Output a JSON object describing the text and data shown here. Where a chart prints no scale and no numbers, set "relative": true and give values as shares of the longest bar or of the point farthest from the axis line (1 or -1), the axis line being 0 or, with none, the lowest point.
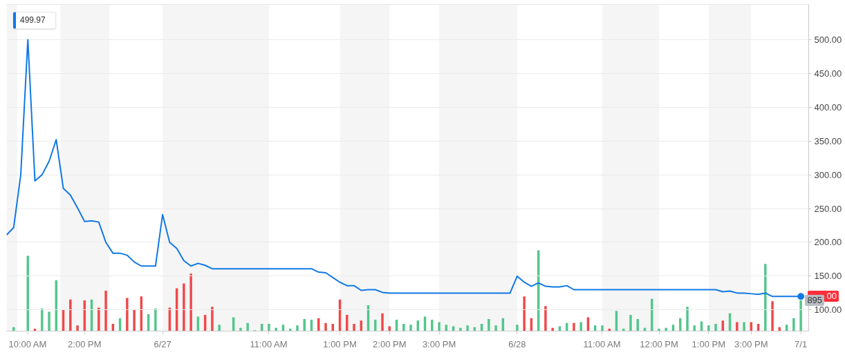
{
  "chart_data": [
    {
      "type": "bar",
      "relative": true,
      "tick_labels": false,
      "categories": [
        null,
        null,
        null,
        "10:00 AM",
        null,
        null,
        null,
        null,
        null,
        null,
        null,
        "2:00 PM",
        null,
        null,
        null,
        null,
        null,
        null,
        null,
        null,
        null,
        null,
        "6/27",
        null,
        null,
        null,
        null,
        null,
        null,
        null,
        null,
        null,
        null,
        null,
        null,
        null,
        null,
        "11:00 AM",
        null,
        null,
        null,
        null,
        null,
        null,
        null,
        null,
        null,
        "1:00 PM",
        null,
        null,
        null,
        null,
        null,
        null,
        "2:00 PM",
        null,
        null,
        null,
        null,
        null,
        null,
        "3:00 PM",
        null,
        null,
        null,
        null,
        null,
        null,
        null,
        null,
        null,
        null,
        "6/28",
        null,
        null,
        null,
        null,
        null,
        null,
        null,
        null,
        null,
        null,
        null,
        "11:00 AM",
        null,
        null,
        null,
        null,
        null,
        null,
        null,
        "12:00 PM",
        null,
        null,
        null,
        null,
        null,
        null,
        "1:00 PM",
        null,
        null,
        null,
        null,
        null,
        "3:00 PM",
        null,
        null,
        null,
        null,
        null,
        null,
        "7/1"
      ],
      "annotations": [
        {
          "text": "895",
          "x": "7/1",
          "y": 0.38
        }
      ],
      "bands": [
        {
          "axis": "x",
          "from": "6/27",
          "to": "11:00 AM",
          "color": "#f5f5f5"
        },
        {
          "axis": "x",
          "from": "3:00 PM",
          "to": "6/28",
          "color": "#f5f5f5"
        }
      ],
      "series": [
        {
          "values": [
            null,
            0.05,
            null,
            0.93,
            0.03,
            0.28,
            0.24,
            0.63,
            0.26,
            0.39,
            0.07,
            0.38,
            0.39,
            0.29,
            0.5,
            0.09,
            0.16,
            0.41,
            0.26,
            0.43,
            0.21,
            0.28,
            null,
            0.29,
            0.53,
            0.59,
            0.71,
            0.18,
            0.2,
            0.3,
            0.08,
            null,
            0.17,
            0.04,
            0.1,
            0.01,
            0.09,
            0.09,
            0.04,
            0.08,
            0.03,
            0.07,
            0.15,
            0.14,
            0.16,
            0.1,
            0.09,
            0.39,
            0.2,
            0.09,
            0.13,
            0.32,
            0.14,
            0.22,
            0.06,
            0.14,
            0.09,
            0.08,
            0.13,
            0.18,
            0.14,
            0.11,
            0.08,
            0.06,
            0.04,
            0.07,
            0.05,
            0.09,
            0.15,
            0.07,
            0.16,
            null,
            0.08,
            0.43,
            0.16,
            1,
            0.31,
            0.04,
            0.06,
            0.1,
            0.1,
            0.11,
            0.17,
            0.07,
            0.07,
            0.03,
            0.25,
            0.03,
            0.2,
            0.15,
            0.04,
            0.4,
            0.03,
            0.04,
            0.08,
            0.16,
            0.3,
            0.07,
            0.12,
            0.07,
            0.09,
            0.13,
            0.22,
            0.11,
            0.11,
            0.11,
            0.09,
            0.83,
            0.37,
            0.05,
            0.08,
            0.16,
            0.38
          ],
          "colors": [
            null,
            "#53c68c",
            null,
            "#53c68c",
            "#f0494b",
            "#53c68c",
            "#53c68c",
            "#53c68c",
            "#f0494b",
            "#f0494b",
            "#f0494b",
            "#f0494b",
            "#53c68c",
            "#f0494b",
            "#f0494b",
            "#f0494b",
            "#53c68c",
            "#f0494b",
            "#f0494b",
            "#f0494b",
            "#53c68c",
            "#53c68c",
            null,
            "#f0494b",
            "#f0494b",
            "#f0494b",
            "#f0494b",
            "#53c68c",
            "#f0494b",
            "#f0494b",
            "#53c68c",
            null,
            "#53c68c",
            "#53c68c",
            "#53c68c",
            "#53c68c",
            "#53c68c",
            "#53c68c",
            "#53c68c",
            "#53c68c",
            "#53c68c",
            "#53c68c",
            "#53c68c",
            "#53c68c",
            "#f0494b",
            "#f0494b",
            "#f0494b",
            "#f0494b",
            "#f0494b",
            "#f0494b",
            "#f0494b",
            "#53c68c",
            "#53c68c",
            "#f0494b",
            "#f0494b",
            "#53c68c",
            "#53c68c",
            "#53c68c",
            "#53c68c",
            "#53c68c",
            "#53c68c",
            "#53c68c",
            "#53c68c",
            "#53c68c",
            "#53c68c",
            "#53c68c",
            "#53c68c",
            "#53c68c",
            "#53c68c",
            "#53c68c",
            "#53c68c",
            null,
            "#53c68c",
            "#f0494b",
            "#f0494b",
            "#53c68c",
            "#f0494b",
            "#f0494b",
            "#53c68c",
            "#53c68c",
            "#f0494b",
            "#53c68c",
            "#f0494b",
            "#53c68c",
            "#53c68c",
            "#f0494b",
            "#53c68c",
            "#53c68c",
            "#53c68c",
            "#53c68c",
            "#53c68c",
            "#53c68c",
            "#53c68c",
            "#53c68c",
            "#53c68c",
            "#53c68c",
            "#53c68c",
            "#53c68c",
            "#53c68c",
            "#53c68c",
            "#53c68c",
            "#f0494b",
            "#53c68c",
            "#f0494b",
            "#53c68c",
            "#f0494b",
            "#f0494b",
            "#53c68c",
            "#f0494b",
            "#f0494b",
            "#53c68c",
            "#53c68c",
            "#53c68c"
          ]
        }
      ]
    },
    {
      "type": "line",
      "annotations": [
        "499.97",
        "00"
      ],
      "categories": [
        null,
        null,
        null,
        "10:00 AM",
        null,
        null,
        null,
        null,
        null,
        null,
        null,
        "2:00 PM",
        null,
        null,
        null,
        null,
        null,
        null,
        null,
        null,
        null,
        null,
        "6/27",
        null,
        null,
        null,
        null,
        null,
        null,
        null,
        null,
        null,
        null,
        null,
        null,
        null,
        null,
        "11:00 AM",
        null,
        null,
        null,
        null,
        null,
        null,
        null,
        null,
        null,
        "1:00 PM",
        null,
        null,
        null,
        null,
        null,
        null,
        "2:00 PM",
        null,
        null,
        null,
        null,
        null,
        null,
        "3:00 PM",
        null,
        null,
        null,
        null,
        null,
        null,
        null,
        null,
        null,
        null,
        "6/28",
        null,
        null,
        null,
        null,
        null,
        null,
        null,
        null,
        null,
        null,
        null,
        "11:00 AM",
        null,
        null,
        null,
        null,
        null,
        null,
        null,
        "12:00 PM",
        null,
        null,
        null,
        null,
        null,
        null,
        "1:00 PM",
        null,
        null,
        null,
        null,
        null,
        "3:00 PM",
        null,
        null,
        null,
        null,
        null,
        null,
        "7/1"
      ],
      "ylim": [
        68.7,
        552
      ],
      "yticks": [
        {
          "value": 100,
          "label": "100.00"
        },
        {
          "value": 150,
          "label": "150.00"
        },
        {
          "value": 200,
          "label": "200.00"
        },
        {
          "value": 250,
          "label": "250.00"
        },
        {
          "value": 300,
          "label": "300.00"
        },
        {
          "value": 350,
          "label": "350.00"
        },
        {
          "value": 400,
          "label": "400.00"
        },
        {
          "value": 450,
          "label": "450.00"
        },
        {
          "value": 500,
          "label": "500.00"
        }
      ],
      "grid": "y",
      "series": [
        {
          "color": "#0f78e6",
          "values": [
            211,
            222,
            300,
            500,
            291,
            300,
            320,
            352,
            280,
            270,
            251,
            231,
            232,
            230,
            200,
            184,
            184,
            181,
            171,
            165,
            165,
            165,
            241,
            200,
            191,
            173,
            165,
            169,
            166,
            161,
            161,
            161,
            161,
            161,
            161,
            161,
            161,
            161,
            161,
            161,
            161,
            161,
            161,
            161,
            156,
            155,
            148,
            141,
            136,
            136,
            129,
            130,
            130,
            126,
            125,
            125,
            125,
            125,
            125,
            125,
            125,
            125,
            125,
            125,
            125,
            125,
            125,
            125,
            125,
            125,
            125,
            125,
            150,
            141,
            135,
            140,
            135,
            134,
            134,
            136,
            130,
            130,
            130,
            130,
            130,
            130,
            130,
            130,
            130,
            130,
            130,
            130,
            130,
            130,
            130,
            130,
            130,
            130,
            130,
            130,
            130,
            127,
            128,
            125,
            125,
            124,
            123,
            125,
            120,
            120,
            120,
            120,
            120
          ]
        },
        {
          "type": "scatter",
          "color": "#0f78e6",
          "marker": "circle",
          "values": [
            null,
            null,
            null,
            null,
            null,
            null,
            null,
            null,
            null,
            null,
            null,
            null,
            null,
            null,
            null,
            null,
            null,
            null,
            null,
            null,
            null,
            null,
            null,
            null,
            null,
            null,
            null,
            null,
            null,
            null,
            null,
            null,
            null,
            null,
            null,
            null,
            null,
            null,
            null,
            null,
            null,
            null,
            null,
            null,
            null,
            null,
            null,
            null,
            null,
            null,
            null,
            null,
            null,
            null,
            null,
            null,
            null,
            null,
            null,
            null,
            null,
            null,
            null,
            null,
            null,
            null,
            null,
            null,
            null,
            null,
            null,
            null,
            null,
            null,
            null,
            null,
            null,
            null,
            null,
            null,
            null,
            null,
            null,
            null,
            null,
            null,
            null,
            null,
            null,
            null,
            null,
            null,
            null,
            null,
            null,
            null,
            null,
            null,
            null,
            null,
            null,
            null,
            null,
            null,
            null,
            null,
            null,
            null,
            null,
            null,
            null,
            null,
            120
          ]
        }
      ]
    }
  ]
}
